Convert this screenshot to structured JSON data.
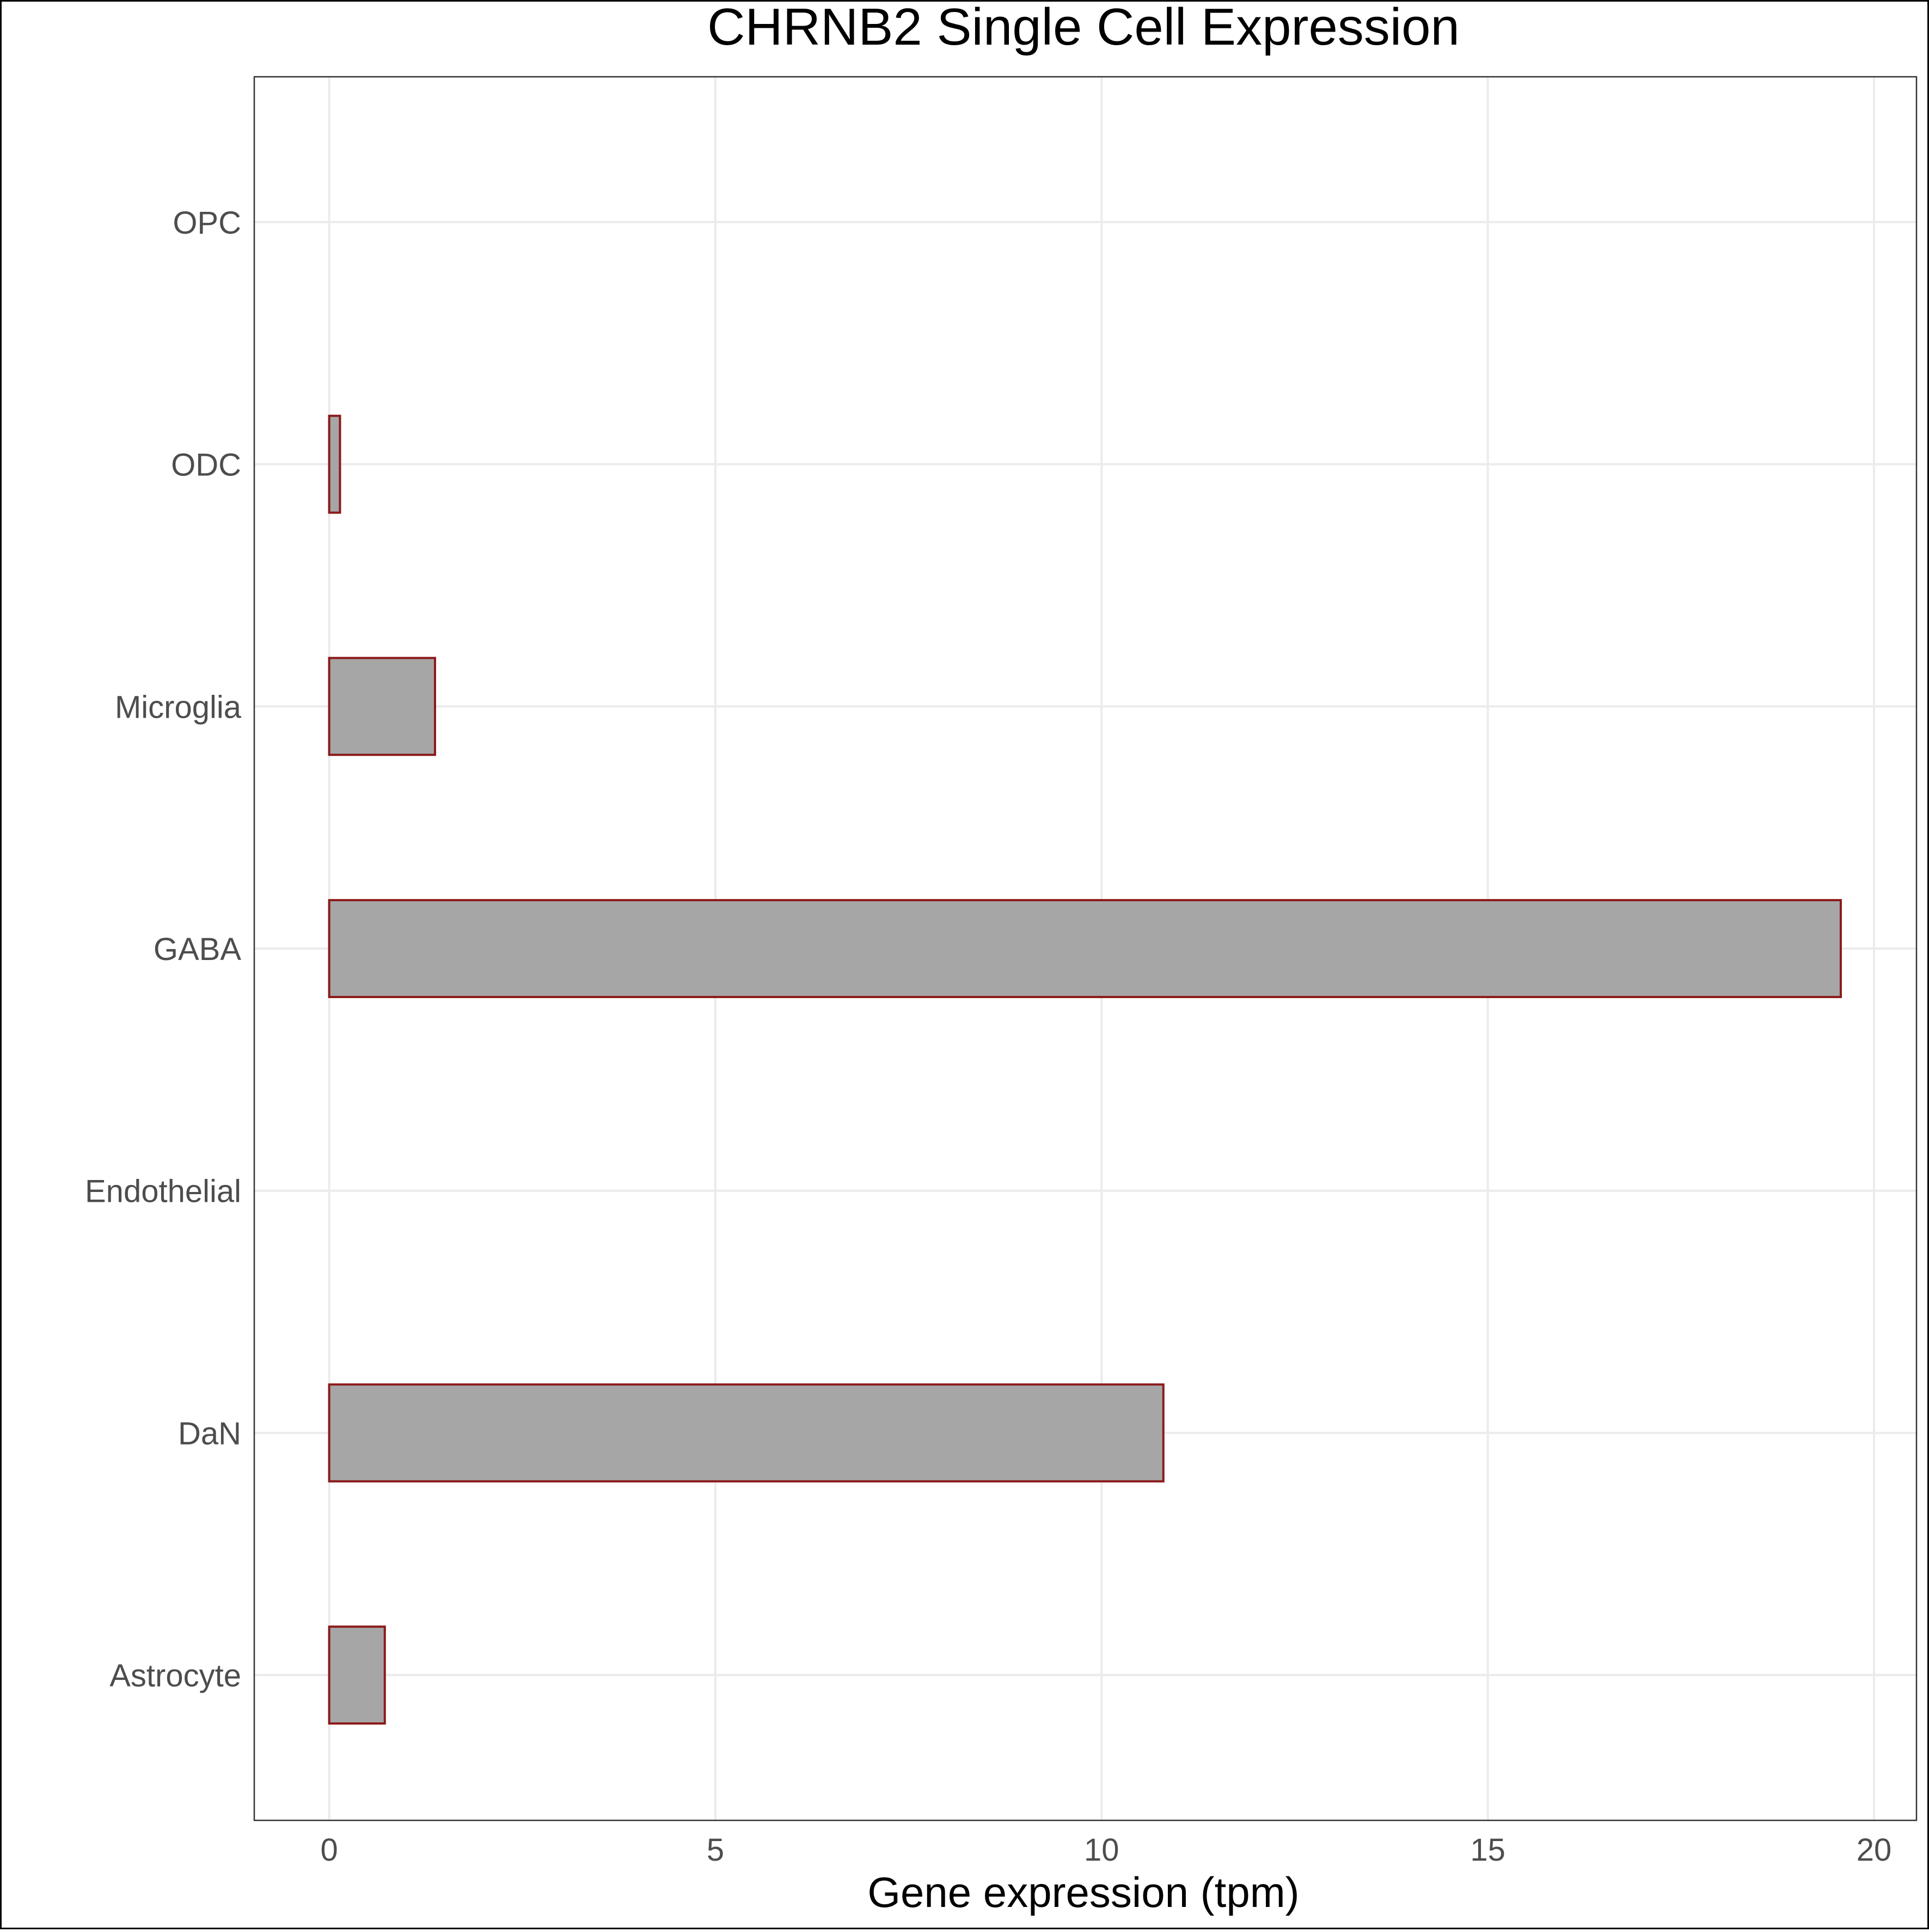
{
  "chart_data": {
    "type": "bar",
    "orientation": "horizontal",
    "title": "CHRNB2 Single Cell Expression",
    "xlabel": "Gene expression (tpm)",
    "ylabel": "",
    "categories": [
      "Astrocyte",
      "DaN",
      "Endothelial",
      "GABA",
      "Microglia",
      "ODC",
      "OPC"
    ],
    "values": [
      0.72,
      10.8,
      0.0,
      19.57,
      1.37,
      0.14,
      0.0
    ],
    "xlim": [
      -0.97,
      20.55
    ],
    "xticks": [
      0,
      5,
      10,
      15,
      20
    ],
    "grid": true,
    "bar_fill": "#a6a6a6",
    "bar_stroke": "#8b1a1a",
    "grid_color": "#ebebeb",
    "axis_color": "#333333",
    "tick_text_color": "#4d4d4d",
    "title_color": "#000000"
  }
}
